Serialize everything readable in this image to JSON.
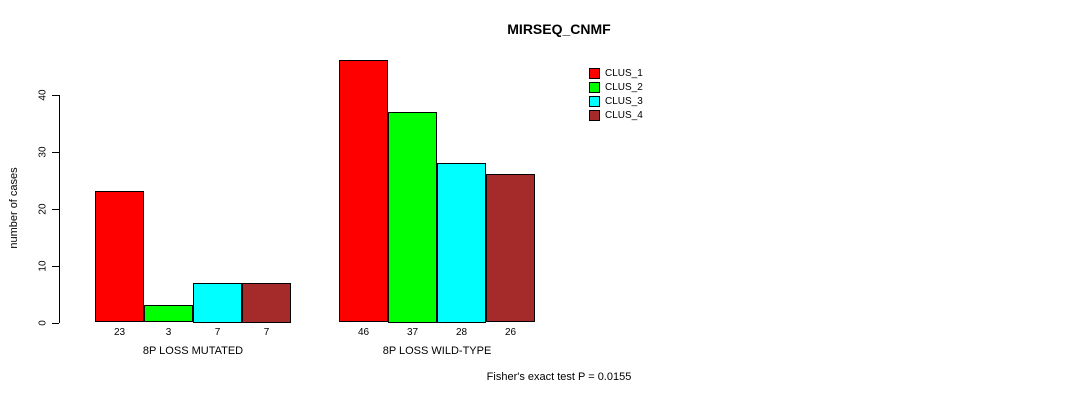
{
  "chart_data": {
    "type": "bar",
    "title": "MIRSEQ_CNMF",
    "ylabel": "number of cases",
    "xlabel": "",
    "categories": [
      "8P LOSS MUTATED",
      "8P LOSS WILD-TYPE"
    ],
    "series": [
      {
        "name": "CLUS_1",
        "color": "#FF0000",
        "values": [
          23,
          46
        ]
      },
      {
        "name": "CLUS_2",
        "color": "#00FF00",
        "values": [
          3,
          37
        ]
      },
      {
        "name": "CLUS_3",
        "color": "#00FFFF",
        "values": [
          7,
          28
        ]
      },
      {
        "name": "CLUS_4",
        "color": "#A52A2A",
        "values": [
          7,
          26
        ]
      }
    ],
    "bar_value_labels": [
      [
        23,
        3,
        7,
        7
      ],
      [
        46,
        37,
        28,
        26
      ]
    ],
    "yticks": [
      0,
      10,
      20,
      30,
      40
    ],
    "ylim": [
      0,
      46
    ],
    "grid": false,
    "legend_position": "top-right",
    "annotation": "Fisher's exact test P = 0.0155"
  }
}
